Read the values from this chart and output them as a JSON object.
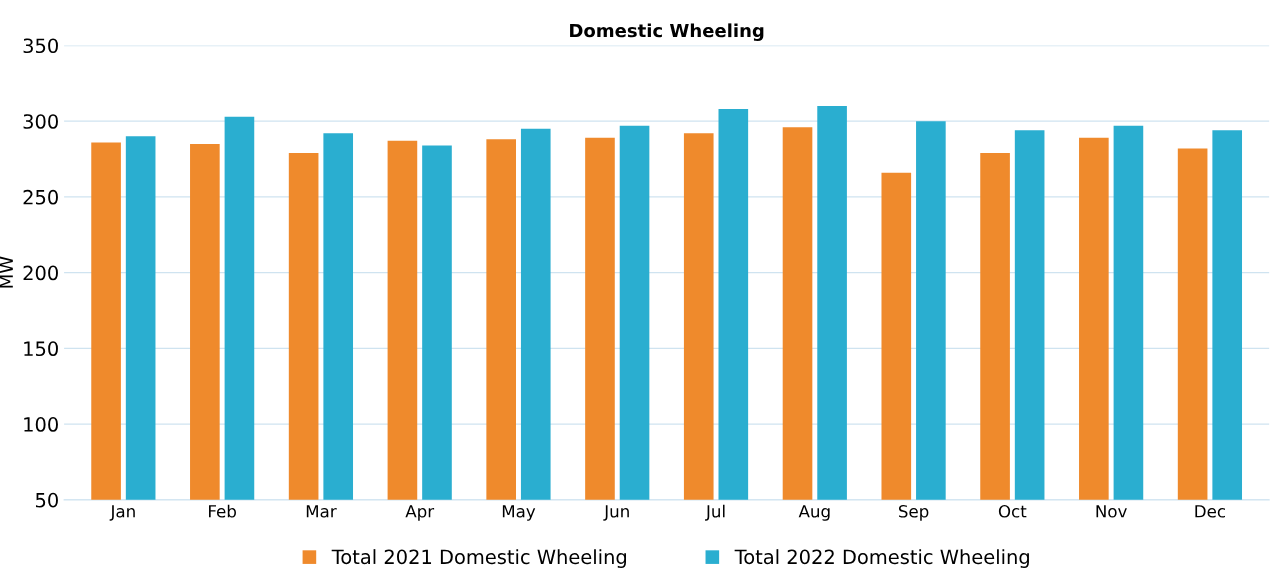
{
  "chart_data": {
    "type": "bar",
    "title": "Domestic Wheeling",
    "ylabel": "MW",
    "categories": [
      "Jan",
      "Feb",
      "Mar",
      "Apr",
      "May",
      "Jun",
      "Jul",
      "Aug",
      "Sep",
      "Oct",
      "Nov",
      "Dec"
    ],
    "series": [
      {
        "name": "Total 2021 Domestic Wheeling",
        "color": "#ef8a2c",
        "values": [
          286,
          285,
          279,
          287,
          288,
          289,
          292,
          296,
          266,
          279,
          289,
          282
        ]
      },
      {
        "name": "Total 2022 Domestic Wheeling",
        "color": "#2aaed0",
        "values": [
          290,
          303,
          292,
          284,
          295,
          297,
          308,
          310,
          300,
          294,
          297,
          294
        ]
      }
    ],
    "ylim": [
      50,
      350
    ],
    "yticks": [
      50,
      100,
      150,
      200,
      250,
      300,
      350
    ],
    "grid": "y",
    "legend": "bottom"
  }
}
